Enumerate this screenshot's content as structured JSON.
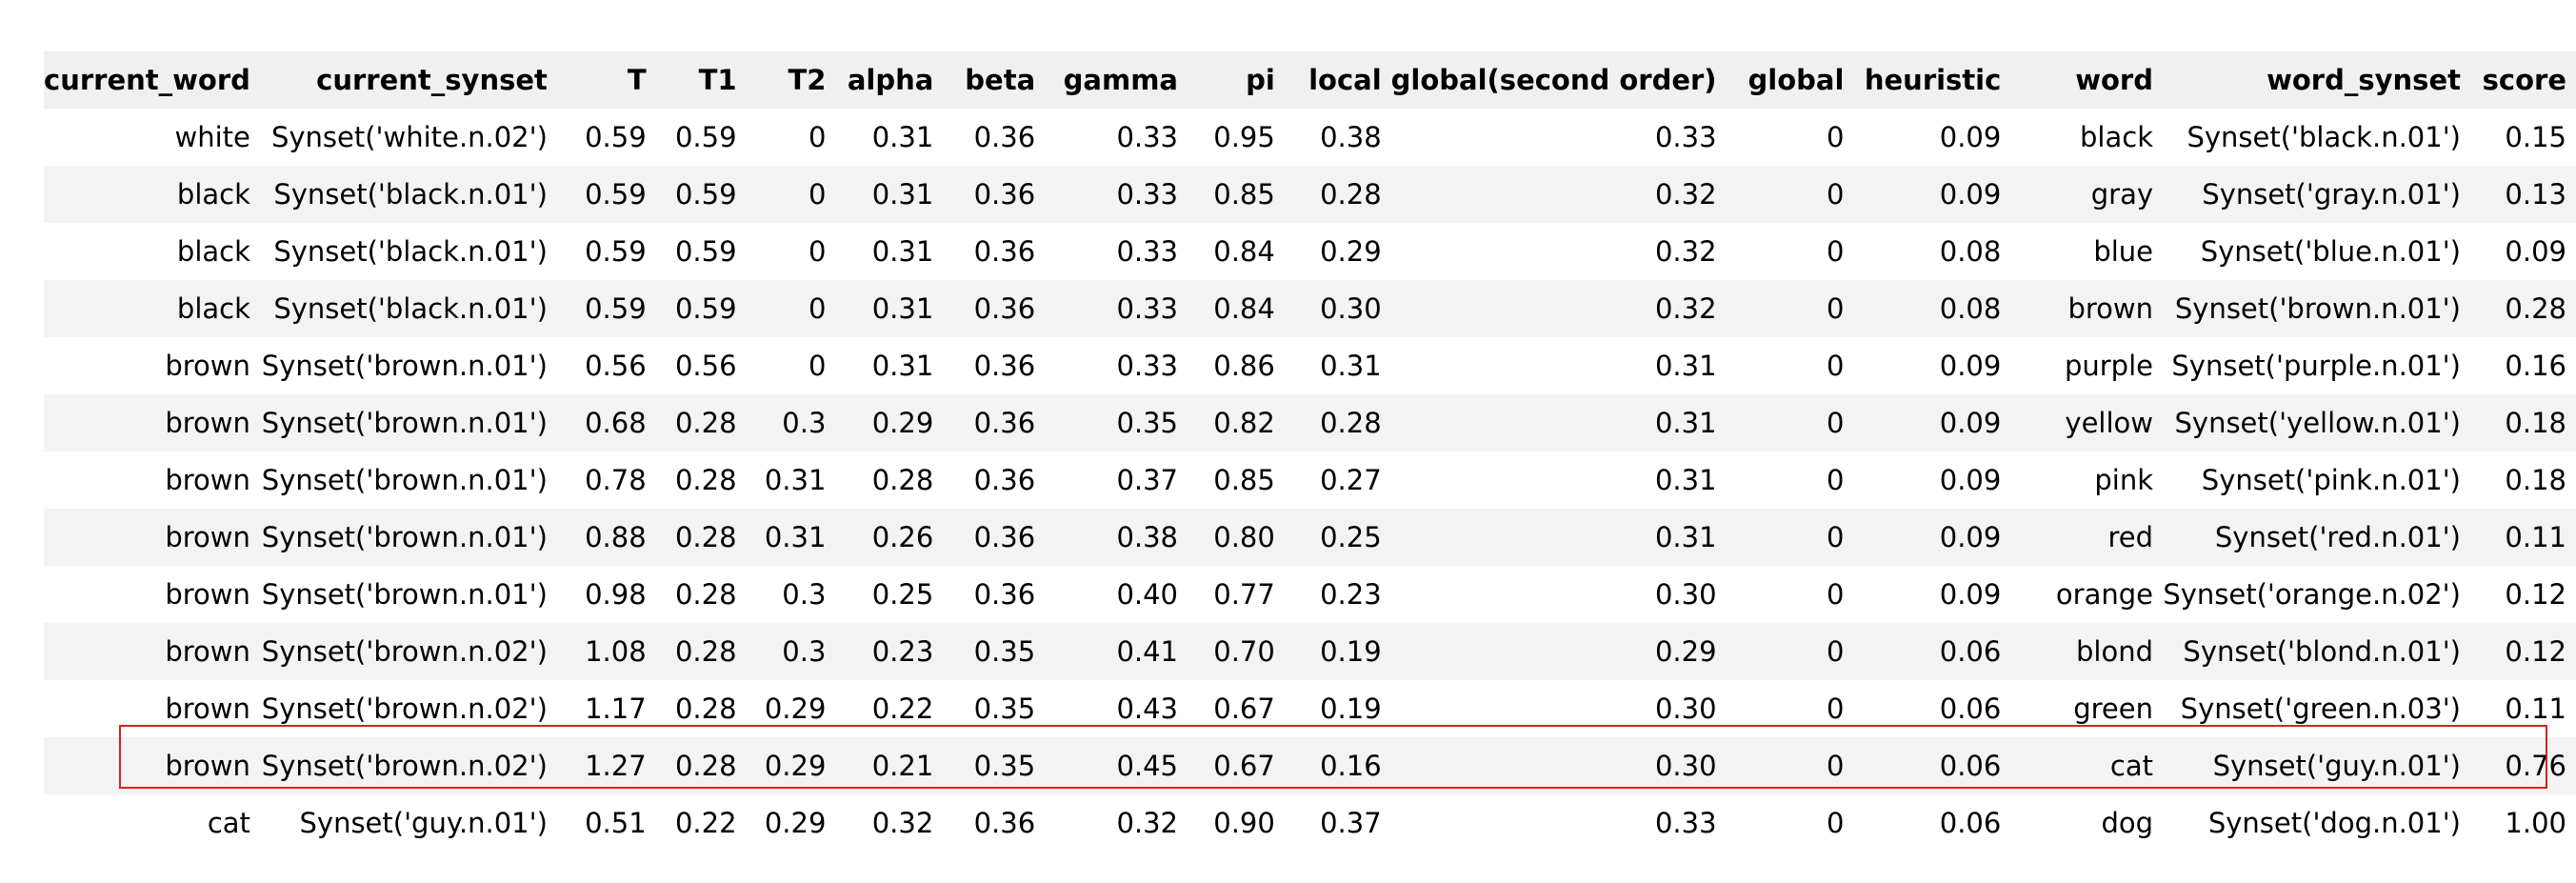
{
  "highlight_color": "#e01e1e",
  "highlighted_row": 11,
  "columns": [
    "current_word",
    "current_synset",
    "T",
    "T1",
    "T2",
    "alpha",
    "beta",
    "gamma",
    "pi",
    "local",
    "global(second order)",
    "global",
    "heuristic",
    "word",
    "word_synset",
    "score"
  ],
  "rows": [
    [
      "white",
      "Synset('white.n.02')",
      "0.59",
      "0.59",
      "0",
      "0.31",
      "0.36",
      "0.33",
      "0.95",
      "0.38",
      "0.33",
      "0",
      "0.09",
      "black",
      "Synset('black.n.01')",
      "0.15"
    ],
    [
      "black",
      "Synset('black.n.01')",
      "0.59",
      "0.59",
      "0",
      "0.31",
      "0.36",
      "0.33",
      "0.85",
      "0.28",
      "0.32",
      "0",
      "0.09",
      "gray",
      "Synset('gray.n.01')",
      "0.13"
    ],
    [
      "black",
      "Synset('black.n.01')",
      "0.59",
      "0.59",
      "0",
      "0.31",
      "0.36",
      "0.33",
      "0.84",
      "0.29",
      "0.32",
      "0",
      "0.08",
      "blue",
      "Synset('blue.n.01')",
      "0.09"
    ],
    [
      "black",
      "Synset('black.n.01')",
      "0.59",
      "0.59",
      "0",
      "0.31",
      "0.36",
      "0.33",
      "0.84",
      "0.30",
      "0.32",
      "0",
      "0.08",
      "brown",
      "Synset('brown.n.01')",
      "0.28"
    ],
    [
      "brown",
      "Synset('brown.n.01')",
      "0.56",
      "0.56",
      "0",
      "0.31",
      "0.36",
      "0.33",
      "0.86",
      "0.31",
      "0.31",
      "0",
      "0.09",
      "purple",
      "Synset('purple.n.01')",
      "0.16"
    ],
    [
      "brown",
      "Synset('brown.n.01')",
      "0.68",
      "0.28",
      "0.3",
      "0.29",
      "0.36",
      "0.35",
      "0.82",
      "0.28",
      "0.31",
      "0",
      "0.09",
      "yellow",
      "Synset('yellow.n.01')",
      "0.18"
    ],
    [
      "brown",
      "Synset('brown.n.01')",
      "0.78",
      "0.28",
      "0.31",
      "0.28",
      "0.36",
      "0.37",
      "0.85",
      "0.27",
      "0.31",
      "0",
      "0.09",
      "pink",
      "Synset('pink.n.01')",
      "0.18"
    ],
    [
      "brown",
      "Synset('brown.n.01')",
      "0.88",
      "0.28",
      "0.31",
      "0.26",
      "0.36",
      "0.38",
      "0.80",
      "0.25",
      "0.31",
      "0",
      "0.09",
      "red",
      "Synset('red.n.01')",
      "0.11"
    ],
    [
      "brown",
      "Synset('brown.n.01')",
      "0.98",
      "0.28",
      "0.3",
      "0.25",
      "0.36",
      "0.40",
      "0.77",
      "0.23",
      "0.30",
      "0",
      "0.09",
      "orange",
      "Synset('orange.n.02')",
      "0.12"
    ],
    [
      "brown",
      "Synset('brown.n.02')",
      "1.08",
      "0.28",
      "0.3",
      "0.23",
      "0.35",
      "0.41",
      "0.70",
      "0.19",
      "0.29",
      "0",
      "0.06",
      "blond",
      "Synset('blond.n.01')",
      "0.12"
    ],
    [
      "brown",
      "Synset('brown.n.02')",
      "1.17",
      "0.28",
      "0.29",
      "0.22",
      "0.35",
      "0.43",
      "0.67",
      "0.19",
      "0.30",
      "0",
      "0.06",
      "green",
      "Synset('green.n.03')",
      "0.11"
    ],
    [
      "brown",
      "Synset('brown.n.02')",
      "1.27",
      "0.28",
      "0.29",
      "0.21",
      "0.35",
      "0.45",
      "0.67",
      "0.16",
      "0.30",
      "0",
      "0.06",
      "cat",
      "Synset('guy.n.01')",
      "0.76"
    ],
    [
      "cat",
      "Synset('guy.n.01')",
      "0.51",
      "0.22",
      "0.29",
      "0.32",
      "0.36",
      "0.32",
      "0.90",
      "0.37",
      "0.33",
      "0",
      "0.06",
      "dog",
      "Synset('dog.n.01')",
      "1.00"
    ]
  ]
}
